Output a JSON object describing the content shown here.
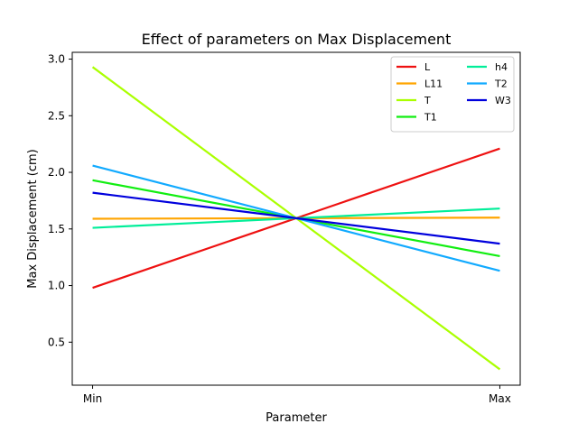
{
  "chart_data": {
    "type": "line",
    "title": "Effect of parameters on Max Displacement",
    "xlabel": "Parameter",
    "ylabel": "Max Displacement (cm)",
    "x": [
      "Min",
      "Max"
    ],
    "xlim": [
      -0.05,
      1.05
    ],
    "ylim": [
      0.12,
      3.06
    ],
    "yticks": [
      "0.5",
      "1.0",
      "1.5",
      "2.0",
      "2.5",
      "3.0"
    ],
    "grid": false,
    "legend_position": "top-right",
    "legend_columns": 2,
    "series": [
      {
        "name": "L",
        "color": "#ee1111",
        "values": [
          0.98,
          2.21
        ]
      },
      {
        "name": "L11",
        "color": "#ffa500",
        "values": [
          1.59,
          1.6
        ]
      },
      {
        "name": "T",
        "color": "#aaff00",
        "values": [
          2.93,
          0.26
        ]
      },
      {
        "name": "T1",
        "color": "#11ee11",
        "values": [
          1.93,
          1.26
        ]
      },
      {
        "name": "h4",
        "color": "#00ee99",
        "values": [
          1.51,
          1.68
        ]
      },
      {
        "name": "T2",
        "color": "#11aaff",
        "values": [
          2.06,
          1.13
        ]
      },
      {
        "name": "W3",
        "color": "#0000dd",
        "values": [
          1.82,
          1.37
        ]
      }
    ]
  }
}
